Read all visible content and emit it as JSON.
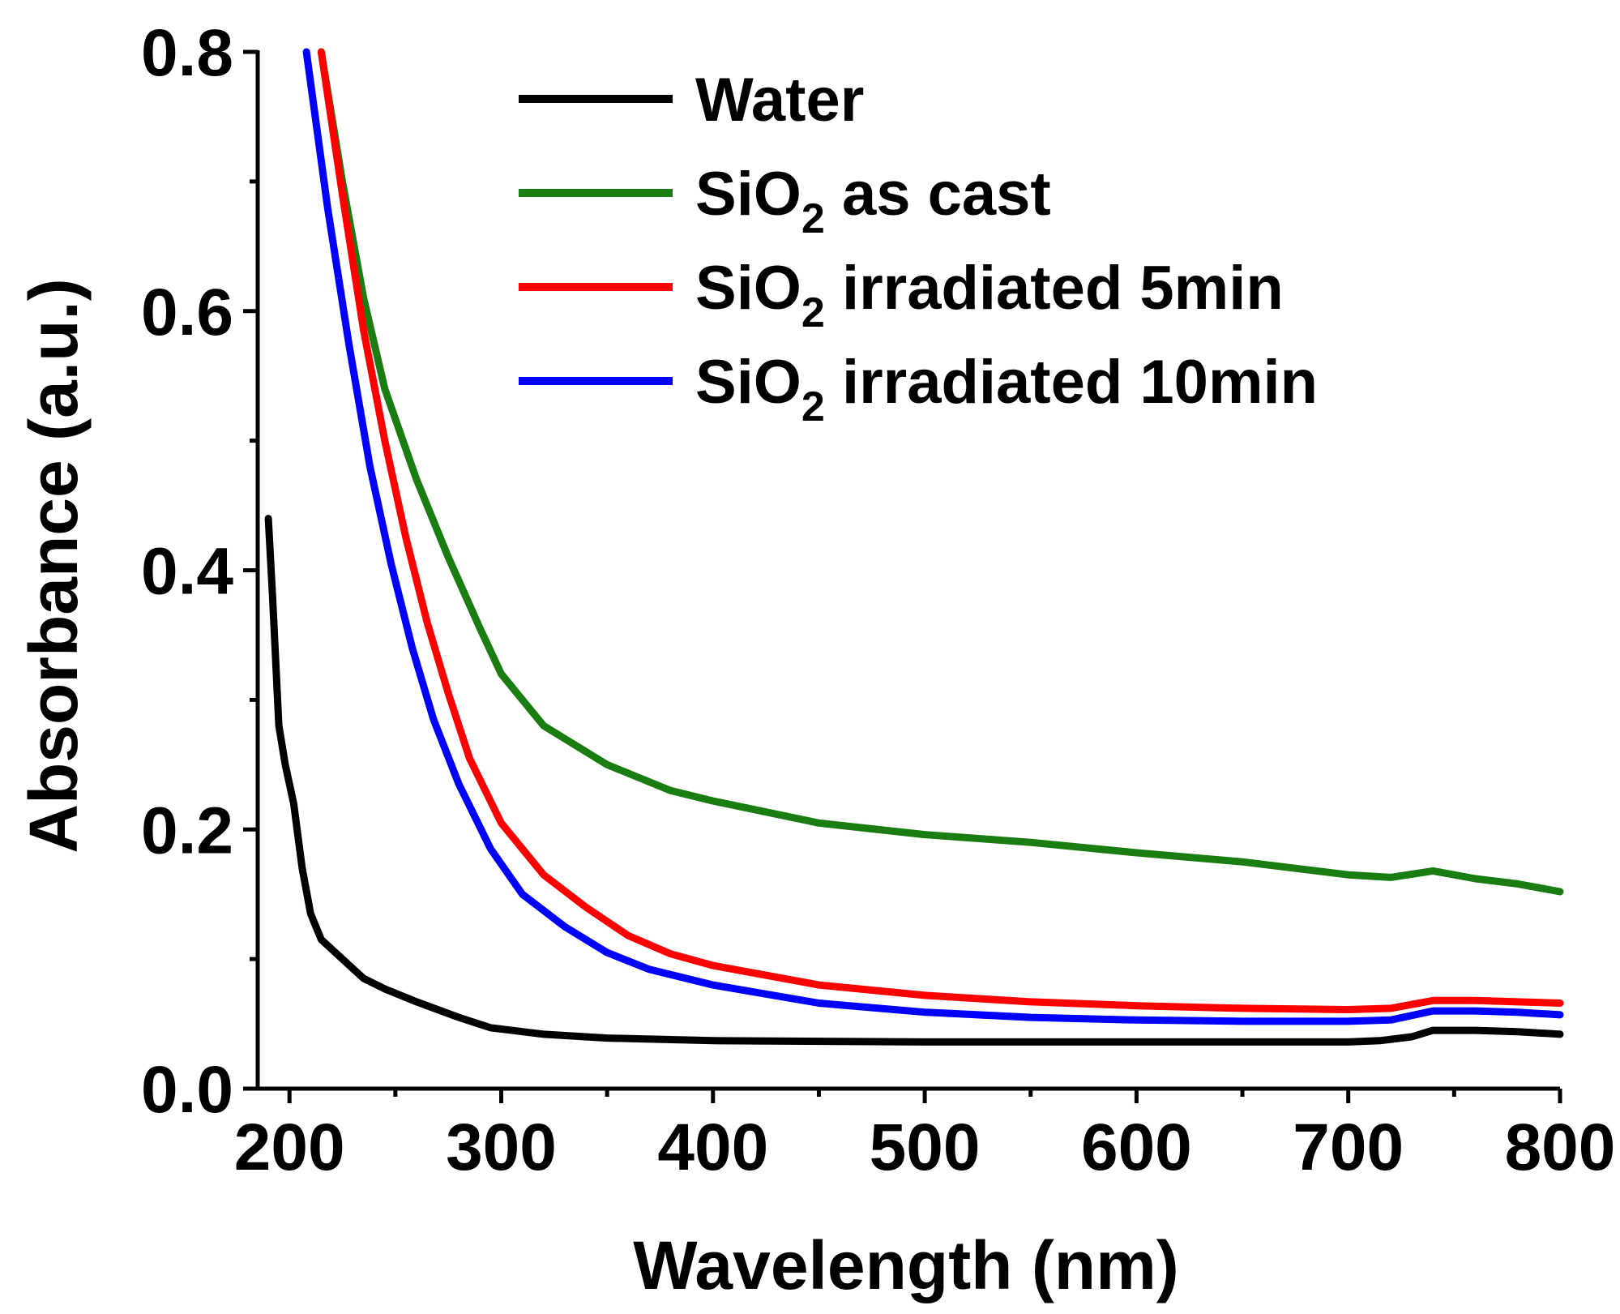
{
  "chart_data": {
    "type": "line",
    "title": "",
    "xlabel": "Wavelength (nm)",
    "ylabel": "Absorbance (a.u.)",
    "xlim": [
      185,
      800
    ],
    "ylim": [
      0.0,
      0.8
    ],
    "x_ticks": [
      200,
      300,
      400,
      500,
      600,
      700,
      800
    ],
    "x_tick_labels": [
      "200",
      "300",
      "400",
      "500",
      "600",
      "700",
      "800"
    ],
    "x_minor_ticks": [
      250,
      350,
      450,
      550,
      650,
      750
    ],
    "y_ticks": [
      0.0,
      0.2,
      0.4,
      0.6,
      0.8
    ],
    "y_tick_labels": [
      "0.0",
      "0.2",
      "0.4",
      "0.6",
      "0.8"
    ],
    "y_minor_ticks": [
      0.1,
      0.3,
      0.5,
      0.7
    ],
    "grid": false,
    "legend_position": "top-right",
    "series": [
      {
        "name": "Water",
        "legend_label": "Water",
        "legend_sub": "",
        "legend_suffix": "",
        "color": "#000000",
        "points": [
          [
            190,
            0.44
          ],
          [
            192,
            0.38
          ],
          [
            195,
            0.28
          ],
          [
            198,
            0.25
          ],
          [
            202,
            0.22
          ],
          [
            206,
            0.17
          ],
          [
            210,
            0.135
          ],
          [
            215,
            0.115
          ],
          [
            225,
            0.1
          ],
          [
            235,
            0.085
          ],
          [
            245,
            0.077
          ],
          [
            260,
            0.067
          ],
          [
            280,
            0.055
          ],
          [
            295,
            0.047
          ],
          [
            320,
            0.042
          ],
          [
            350,
            0.039
          ],
          [
            400,
            0.037
          ],
          [
            500,
            0.036
          ],
          [
            600,
            0.036
          ],
          [
            700,
            0.036
          ],
          [
            715,
            0.037
          ],
          [
            730,
            0.04
          ],
          [
            740,
            0.045
          ],
          [
            760,
            0.045
          ],
          [
            780,
            0.044
          ],
          [
            800,
            0.042
          ]
        ]
      },
      {
        "name": "SiO2 as cast",
        "legend_label": "SiO",
        "legend_sub": "2",
        "legend_suffix": " as cast",
        "color": "#1a7d12",
        "points": [
          [
            215,
            0.8
          ],
          [
            225,
            0.7
          ],
          [
            235,
            0.61
          ],
          [
            245,
            0.54
          ],
          [
            260,
            0.47
          ],
          [
            275,
            0.41
          ],
          [
            290,
            0.355
          ],
          [
            300,
            0.32
          ],
          [
            320,
            0.28
          ],
          [
            350,
            0.25
          ],
          [
            380,
            0.23
          ],
          [
            400,
            0.222
          ],
          [
            450,
            0.205
          ],
          [
            500,
            0.196
          ],
          [
            550,
            0.19
          ],
          [
            600,
            0.182
          ],
          [
            650,
            0.175
          ],
          [
            700,
            0.165
          ],
          [
            720,
            0.163
          ],
          [
            740,
            0.168
          ],
          [
            760,
            0.162
          ],
          [
            780,
            0.158
          ],
          [
            800,
            0.152
          ]
        ]
      },
      {
        "name": "SiO2 irradiated 5min",
        "legend_label": "SiO",
        "legend_sub": "2",
        "legend_suffix": " irradiated 5min",
        "color": "#ff0000",
        "points": [
          [
            215,
            0.8
          ],
          [
            225,
            0.69
          ],
          [
            235,
            0.585
          ],
          [
            245,
            0.5
          ],
          [
            255,
            0.425
          ],
          [
            265,
            0.36
          ],
          [
            275,
            0.305
          ],
          [
            285,
            0.255
          ],
          [
            300,
            0.205
          ],
          [
            320,
            0.165
          ],
          [
            340,
            0.14
          ],
          [
            360,
            0.118
          ],
          [
            380,
            0.104
          ],
          [
            400,
            0.095
          ],
          [
            450,
            0.08
          ],
          [
            500,
            0.072
          ],
          [
            550,
            0.067
          ],
          [
            600,
            0.064
          ],
          [
            650,
            0.062
          ],
          [
            700,
            0.061
          ],
          [
            720,
            0.062
          ],
          [
            740,
            0.068
          ],
          [
            760,
            0.068
          ],
          [
            780,
            0.067
          ],
          [
            800,
            0.066
          ]
        ]
      },
      {
        "name": "SiO2 irradiated 10min",
        "legend_label": "SiO",
        "legend_sub": "2",
        "legend_suffix": " irradiated 10min",
        "color": "#0000ff",
        "points": [
          [
            208,
            0.8
          ],
          [
            218,
            0.68
          ],
          [
            228,
            0.575
          ],
          [
            238,
            0.48
          ],
          [
            248,
            0.405
          ],
          [
            258,
            0.34
          ],
          [
            268,
            0.285
          ],
          [
            280,
            0.235
          ],
          [
            295,
            0.185
          ],
          [
            310,
            0.15
          ],
          [
            330,
            0.125
          ],
          [
            350,
            0.105
          ],
          [
            370,
            0.092
          ],
          [
            400,
            0.08
          ],
          [
            450,
            0.066
          ],
          [
            500,
            0.059
          ],
          [
            550,
            0.055
          ],
          [
            600,
            0.053
          ],
          [
            650,
            0.052
          ],
          [
            700,
            0.052
          ],
          [
            720,
            0.053
          ],
          [
            740,
            0.06
          ],
          [
            760,
            0.06
          ],
          [
            780,
            0.059
          ],
          [
            800,
            0.057
          ]
        ]
      }
    ]
  }
}
